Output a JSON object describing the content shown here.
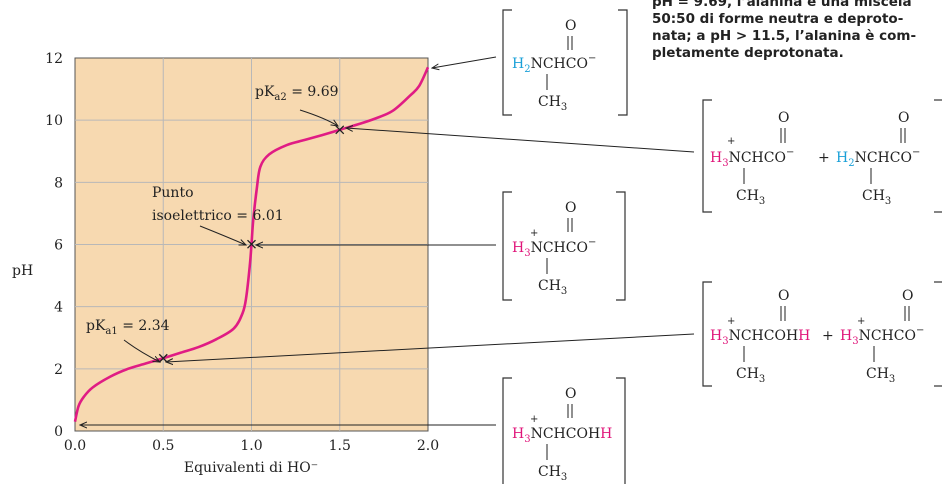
{
  "colors": {
    "plot_bg": "#f7d9b0",
    "curve": "#e01c84",
    "grid": "#b8b8b8",
    "magenta": "#e0157a",
    "cyan": "#1aa0d8"
  },
  "chart_data": {
    "type": "line",
    "title": "",
    "xlabel": "Equivalenti di HO⁻",
    "ylabel": "pH",
    "xlim": [
      0,
      2
    ],
    "ylim": [
      0,
      12
    ],
    "x_ticks": [
      "0.0",
      "0.5",
      "1.0",
      "1.5",
      "2.0"
    ],
    "y_ticks": [
      "0",
      "2",
      "4",
      "6",
      "8",
      "10",
      "12"
    ],
    "grid": true,
    "series": [
      {
        "x": [
          0.0,
          0.02,
          0.05,
          0.1,
          0.2,
          0.3,
          0.4,
          0.5,
          0.6,
          0.7,
          0.8,
          0.9,
          0.95,
          0.97,
          0.99,
          1.0,
          1.01,
          1.03,
          1.05,
          1.1,
          1.2,
          1.3,
          1.4,
          1.5,
          1.6,
          1.7,
          1.8,
          1.9,
          1.95,
          2.0
        ],
        "y": [
          0.3,
          0.8,
          1.1,
          1.4,
          1.75,
          2.0,
          2.17,
          2.34,
          2.52,
          2.7,
          2.95,
          3.3,
          3.8,
          4.3,
          5.3,
          6.01,
          6.8,
          7.8,
          8.5,
          8.9,
          9.2,
          9.36,
          9.52,
          9.69,
          9.86,
          10.05,
          10.3,
          10.8,
          11.1,
          11.7
        ]
      }
    ],
    "points": [
      {
        "x": 0.5,
        "y": 2.34,
        "label": "pK",
        "sub": "a1",
        "value": " = 2.34"
      },
      {
        "x": 1.0,
        "y": 6.01,
        "label": "Punto",
        "label2": "isoelettrico = 6.01"
      },
      {
        "x": 1.5,
        "y": 9.69,
        "label": "pK",
        "sub": "a2",
        "value": " = 9.69"
      }
    ]
  },
  "caption": {
    "lines": [
      "pH = 9.69, l’alanina è una miscela",
      "50:50 di forme neutra e deproto-",
      "nata; a pH > 11.5, l’alanina è com-",
      "pletamente deprotonata."
    ]
  },
  "structures": {
    "carbonyl_o": "O",
    "chain_single": "NCHCO",
    "chain_acid": "NCHCOH",
    "anion_charge": "−",
    "plus": "+",
    "h3_h": "H",
    "h3_sub": "3",
    "h2_h": "H",
    "h2_sub": "2",
    "ch3": "CH",
    "ch3_sub": "3",
    "acid_h": "H",
    "mix_plus": "+"
  }
}
